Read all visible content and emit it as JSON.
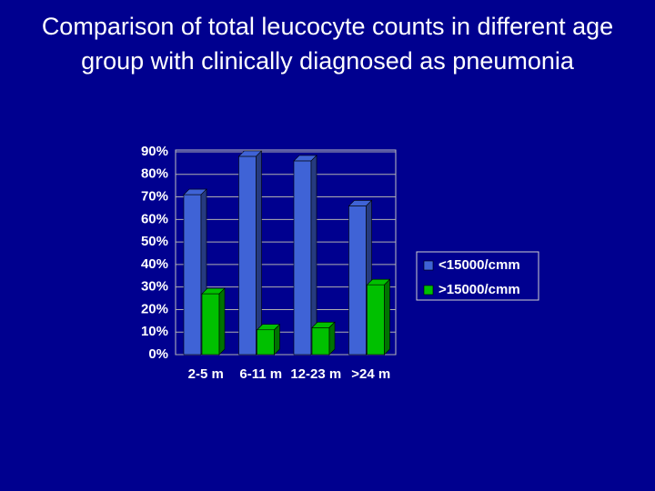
{
  "chart_data": {
    "type": "bar3d",
    "title": "Comparison of total leucocyte counts in different age group with clinically diagnosed as pneumonia",
    "categories": [
      "2-5 m",
      "6-11 m",
      "12-23 m",
      ">24 m"
    ],
    "series": [
      {
        "name": "<15000/cmm",
        "color": "#3f63d6",
        "values": [
          71,
          88,
          86,
          66
        ]
      },
      {
        "name": ">15000/cmm",
        "color": "#00c000",
        "values": [
          27,
          11,
          12,
          31
        ]
      }
    ],
    "ylim": [
      0,
      90
    ],
    "yticks": [
      {
        "value": 0,
        "label": "0%"
      },
      {
        "value": 10,
        "label": "10%"
      },
      {
        "value": 20,
        "label": "20%"
      },
      {
        "value": 30,
        "label": "30%"
      },
      {
        "value": 40,
        "label": "40%"
      },
      {
        "value": 50,
        "label": "50%"
      },
      {
        "value": 60,
        "label": "60%"
      },
      {
        "value": 70,
        "label": "70%"
      },
      {
        "value": 80,
        "label": "80%"
      },
      {
        "value": 90,
        "label": "90%"
      }
    ],
    "grid": true
  }
}
